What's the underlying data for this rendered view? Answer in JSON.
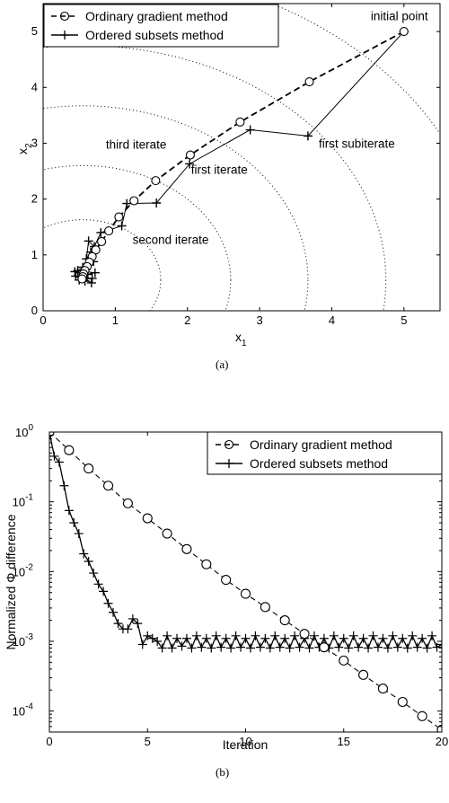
{
  "chart_data": [
    {
      "type": "line",
      "panel_label": "(a)",
      "xlim": [
        0,
        5.5
      ],
      "ylim": [
        0,
        5.5
      ],
      "xticks": [
        0,
        1,
        2,
        3,
        4,
        5
      ],
      "yticks": [
        0,
        1,
        2,
        3,
        4,
        5
      ],
      "xlabel_main": "x",
      "xlabel_sub": "1",
      "ylabel_main": "x",
      "ylabel_sub": "2",
      "contour_radii": [
        1.08,
        2.05,
        3.12,
        4.2,
        5.6
      ],
      "contour_center": [
        0.55,
        0.55
      ],
      "series": [
        {
          "name": "Ordinary gradient method",
          "marker": "circle",
          "linestyle": "dashed",
          "x": [
            5.0,
            3.69,
            2.73,
            2.04,
            1.56,
            1.26,
            1.05,
            0.91,
            0.81,
            0.73,
            0.68,
            0.64,
            0.61,
            0.58,
            0.56,
            0.55,
            0.54
          ],
          "y": [
            5.0,
            4.1,
            3.38,
            2.79,
            2.33,
            1.97,
            1.68,
            1.43,
            1.24,
            1.09,
            0.97,
            0.87,
            0.79,
            0.72,
            0.66,
            0.61,
            0.57
          ]
        },
        {
          "name": "Ordered subsets method",
          "marker": "plus",
          "linestyle": "solid",
          "x": [
            5.0,
            3.67,
            2.87,
            2.03,
            1.57,
            1.16,
            1.09,
            0.8,
            0.71,
            0.63,
            0.6,
            0.66,
            0.55,
            0.7,
            0.48,
            0.72,
            0.45,
            0.68,
            0.5,
            0.62,
            0.44,
            0.67,
            0.52,
            0.58
          ],
          "y": [
            5.0,
            3.13,
            3.24,
            2.63,
            1.93,
            1.92,
            1.52,
            1.4,
            1.15,
            1.25,
            0.93,
            1.05,
            0.78,
            0.88,
            0.72,
            0.68,
            0.62,
            0.58,
            0.55,
            0.65,
            0.7,
            0.5,
            0.6,
            0.53
          ]
        }
      ],
      "annotations": [
        {
          "text": "initial point",
          "x": 4.54,
          "y": 5.28
        },
        {
          "text": "third iterate",
          "x": 0.87,
          "y": 2.98
        },
        {
          "text": "first iterate",
          "x": 2.05,
          "y": 2.53
        },
        {
          "text": "first subiterate",
          "x": 3.82,
          "y": 3.0
        },
        {
          "text": "second iterate",
          "x": 1.24,
          "y": 1.28
        }
      ],
      "legend": "top-left"
    },
    {
      "type": "line",
      "panel_label": "(b)",
      "yscale": "log",
      "xlim": [
        0,
        20
      ],
      "ylim": [
        5e-05,
        1
      ],
      "xticks": [
        0,
        5,
        10,
        15,
        20
      ],
      "ytick_exponents": [
        0,
        -1,
        -2,
        -3,
        -4
      ],
      "xlabel": "Iteration",
      "ylabel": "Normalized Φ difference",
      "series": [
        {
          "name": "Ordinary gradient method",
          "marker": "circle",
          "linestyle": "dashed",
          "x": [
            0,
            1,
            2,
            3,
            4,
            5,
            6,
            7,
            8,
            9,
            10,
            11,
            12,
            13,
            14,
            15,
            16,
            17,
            18,
            19,
            20
          ],
          "y": [
            1,
            0.55,
            0.3,
            0.17,
            0.095,
            0.058,
            0.035,
            0.021,
            0.0127,
            0.0076,
            0.0048,
            0.0031,
            0.002,
            0.00128,
            0.00082,
            0.00053,
            0.00033,
            0.00021,
            0.000135,
            8.45e-05,
            5.4e-05
          ]
        },
        {
          "name": "Ordered subsets method",
          "marker": "plus",
          "linestyle": "solid",
          "x": [
            0,
            0.25,
            0.5,
            0.75,
            1,
            1.25,
            1.5,
            1.75,
            2,
            2.25,
            2.5,
            2.75,
            3,
            3.25,
            3.5,
            3.75,
            4,
            4.25,
            4.5,
            4.75,
            5,
            5.25,
            5.5,
            5.75,
            6,
            6.25,
            6.5,
            6.75,
            7,
            7.25,
            7.5,
            7.75,
            8,
            8.25,
            8.5,
            8.75,
            9,
            9.25,
            9.5,
            9.75,
            10,
            10.25,
            10.5,
            10.75,
            11,
            11.25,
            11.5,
            11.75,
            12,
            12.25,
            12.5,
            12.75,
            13,
            13.25,
            13.5,
            13.75,
            14,
            14.25,
            14.5,
            14.75,
            15,
            15.25,
            15.5,
            15.75,
            16,
            16.25,
            16.5,
            16.75,
            17,
            17.25,
            17.5,
            17.75,
            18,
            18.25,
            18.5,
            18.75,
            19,
            19.25,
            19.5,
            19.75,
            20
          ],
          "y": [
            1,
            0.45,
            0.37,
            0.17,
            0.075,
            0.05,
            0.035,
            0.018,
            0.014,
            0.0095,
            0.0066,
            0.0052,
            0.0035,
            0.0026,
            0.0018,
            0.0015,
            0.0015,
            0.0021,
            0.0018,
            0.0009,
            0.0012,
            0.0011,
            0.001,
            0.0008,
            0.0012,
            0.0008,
            0.0011,
            0.00085,
            0.0011,
            0.0008,
            0.0012,
            0.00082,
            0.0011,
            0.0008,
            0.0012,
            0.00082,
            0.0011,
            0.0008,
            0.0012,
            0.00082,
            0.0011,
            0.0008,
            0.0012,
            0.00082,
            0.0011,
            0.0008,
            0.0012,
            0.00082,
            0.0011,
            0.0008,
            0.0012,
            0.00082,
            0.0011,
            0.0008,
            0.0012,
            0.00082,
            0.0011,
            0.0008,
            0.0012,
            0.00082,
            0.0011,
            0.0008,
            0.0012,
            0.00082,
            0.0011,
            0.0008,
            0.0012,
            0.00082,
            0.0011,
            0.0008,
            0.0012,
            0.00082,
            0.0011,
            0.0008,
            0.0012,
            0.00082,
            0.0011,
            0.0008,
            0.0012,
            0.00082,
            0.0009
          ]
        }
      ],
      "legend": "top-right"
    }
  ]
}
